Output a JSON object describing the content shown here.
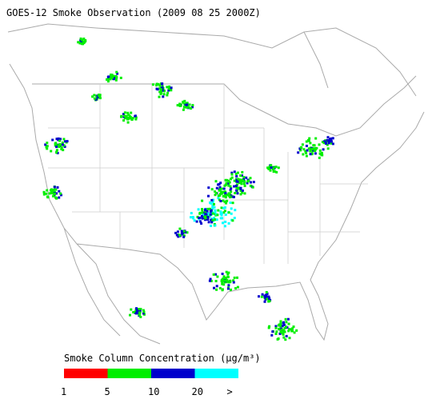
{
  "header": {
    "title": "GOES-12 Smoke Observation (2009 08 25  2000Z)"
  },
  "legend": {
    "label": "Smoke Column Concentration (μg/m³)",
    "colors": [
      "#ff0000",
      "#00ee00",
      "#0000cc",
      "#00ffff"
    ],
    "ticks": [
      "1",
      "5",
      "10",
      "20",
      ">"
    ]
  }
}
